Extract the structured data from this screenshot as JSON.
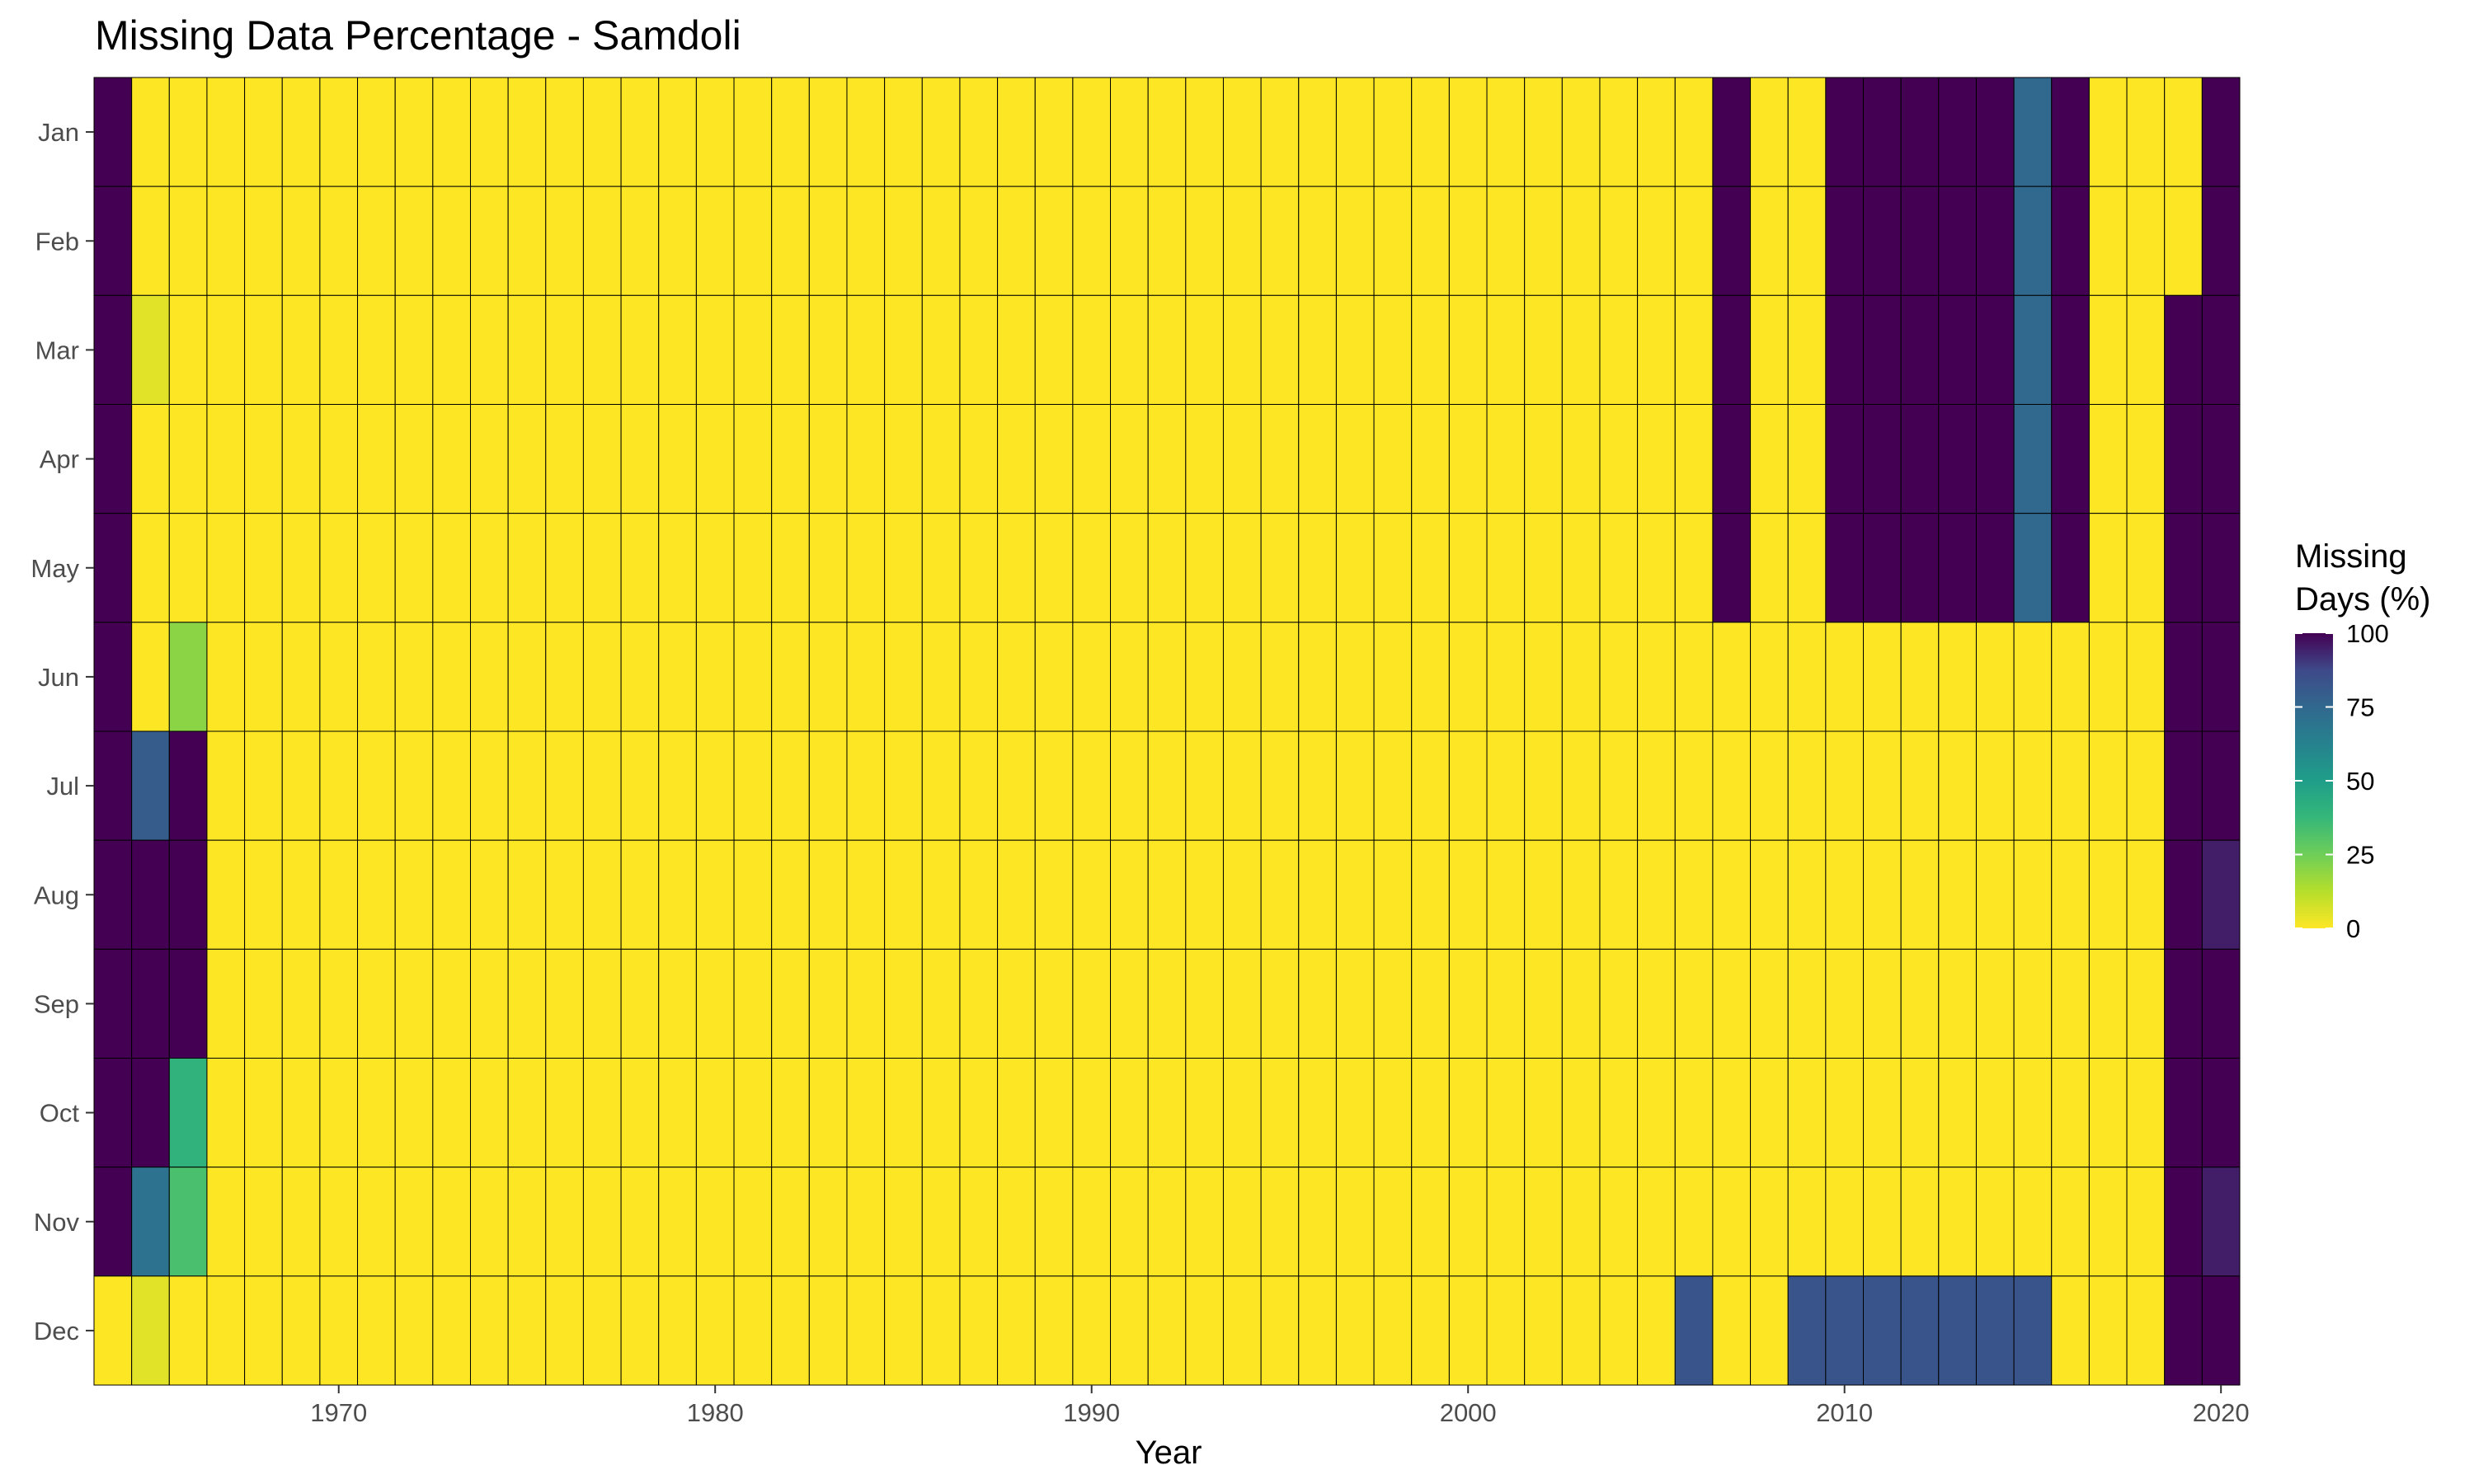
{
  "colors": {
    "low": "#FDE725",
    "mid": "#21908C",
    "high": "#440154",
    "grid_stroke": "#000000",
    "tick_text": "#4d4d4d"
  },
  "chart_data": {
    "type": "heatmap",
    "title": "Missing Data Percentage - Samdoli",
    "xlabel": "Year",
    "ylabel": "",
    "x_start_year": 1964,
    "x_end_year": 2020,
    "x_ticks": [
      1970,
      1980,
      1990,
      2000,
      2010,
      2020
    ],
    "months": [
      "Jan",
      "Feb",
      "Mar",
      "Apr",
      "May",
      "Jun",
      "Jul",
      "Aug",
      "Sep",
      "Oct",
      "Nov",
      "Dec"
    ],
    "legend": {
      "title_line1": "Missing",
      "title_line2": "Days (%)",
      "ticks": [
        100,
        75,
        50,
        25,
        0
      ],
      "range": [
        0,
        100
      ],
      "colormap": "viridis-reversed",
      "placement": "right"
    },
    "default_value": 0,
    "values": {
      "1964": {
        "Jan": 100,
        "Feb": 100,
        "Mar": 100,
        "Apr": 100,
        "May": 100,
        "Jun": 100,
        "Jul": 100,
        "Aug": 100,
        "Sep": 100,
        "Oct": 100,
        "Nov": 100,
        "Dec": 0
      },
      "1965": {
        "Mar": 5,
        "Jul": 80,
        "Aug": 100,
        "Sep": 100,
        "Oct": 100,
        "Nov": 70,
        "Dec": 5
      },
      "1966": {
        "Jun": 20,
        "Jul": 100,
        "Aug": 100,
        "Sep": 100,
        "Oct": 40,
        "Nov": 33
      },
      "2006": {
        "Dec": 83
      },
      "2007": {
        "Jan": 100,
        "Feb": 100,
        "Mar": 100,
        "Apr": 100,
        "May": 100
      },
      "2009": {
        "Dec": 83
      },
      "2010": {
        "Jan": 100,
        "Feb": 100,
        "Mar": 100,
        "Apr": 100,
        "May": 100,
        "Dec": 83
      },
      "2011": {
        "Jan": 100,
        "Feb": 100,
        "Mar": 100,
        "Apr": 100,
        "May": 100,
        "Dec": 83
      },
      "2012": {
        "Jan": 100,
        "Feb": 100,
        "Mar": 100,
        "Apr": 100,
        "May": 100,
        "Dec": 83
      },
      "2013": {
        "Jan": 100,
        "Feb": 100,
        "Mar": 100,
        "Apr": 100,
        "May": 100,
        "Dec": 83
      },
      "2014": {
        "Jan": 100,
        "Feb": 100,
        "Mar": 100,
        "Apr": 100,
        "May": 100,
        "Dec": 83
      },
      "2015": {
        "Jan": 75,
        "Feb": 75,
        "Mar": 75,
        "Apr": 75,
        "May": 75,
        "Dec": 83
      },
      "2016": {
        "Jan": 100,
        "Feb": 100,
        "Mar": 100,
        "Apr": 100,
        "May": 100
      },
      "2019": {
        "Mar": 100,
        "Apr": 100,
        "May": 100,
        "Jun": 100,
        "Jul": 100,
        "Aug": 100,
        "Sep": 100,
        "Oct": 100,
        "Nov": 100,
        "Dec": 100
      },
      "2020": {
        "Jan": 100,
        "Feb": 100,
        "Mar": 100,
        "Apr": 100,
        "May": 100,
        "Jun": 100,
        "Jul": 100,
        "Aug": 95,
        "Sep": 100,
        "Oct": 100,
        "Nov": 95,
        "Dec": 100
      }
    }
  }
}
